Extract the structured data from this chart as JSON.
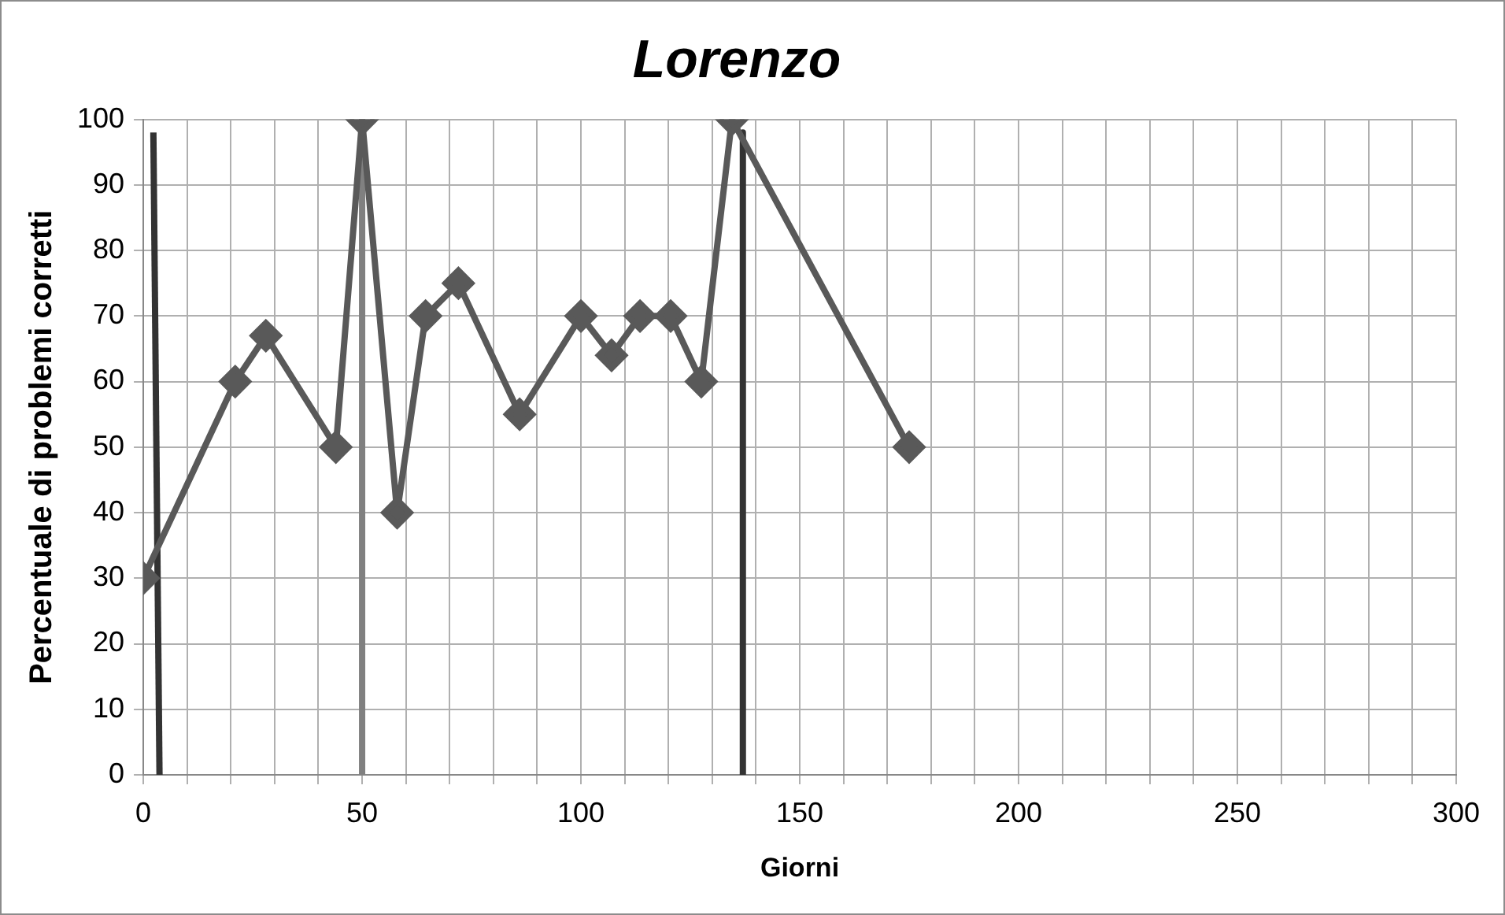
{
  "chart_data": {
    "type": "line",
    "title": "Lorenzo",
    "xlabel": "Giorni",
    "ylabel": "Percentuale di problemi corretti",
    "xlim": [
      0,
      300
    ],
    "xticks": [
      0,
      {
        "value": 10,
        "label": null
      },
      {
        "value": 20,
        "label": null
      },
      {
        "value": 30,
        "label": null
      },
      {
        "value": 40,
        "label": null
      },
      50,
      {
        "value": 60,
        "label": null
      },
      {
        "value": 70,
        "label": null
      },
      {
        "value": 80,
        "label": null
      },
      {
        "value": 90,
        "label": null
      },
      100,
      {
        "value": 110,
        "label": null
      },
      {
        "value": 120,
        "label": null
      },
      {
        "value": 130,
        "label": null
      },
      {
        "value": 140,
        "label": null
      },
      150,
      {
        "value": 160,
        "label": null
      },
      {
        "value": 170,
        "label": null
      },
      {
        "value": 180,
        "label": null
      },
      {
        "value": 190,
        "label": null
      },
      200,
      {
        "value": 210,
        "label": null
      },
      {
        "value": 220,
        "label": null
      },
      {
        "value": 230,
        "label": null
      },
      {
        "value": 240,
        "label": null
      },
      250,
      {
        "value": 260,
        "label": null
      },
      {
        "value": 270,
        "label": null
      },
      {
        "value": 280,
        "label": null
      },
      {
        "value": 290,
        "label": null
      },
      300
    ],
    "ylim": [
      0,
      100
    ],
    "yticks": [
      0,
      10,
      20,
      30,
      40,
      50,
      60,
      70,
      80,
      90,
      100
    ],
    "grid": true,
    "marker": "diamond",
    "series": [
      {
        "color": "#595959",
        "x": [
          0,
          21,
          28,
          44,
          50,
          58,
          64.5,
          72,
          86,
          100,
          107,
          113.5,
          120.5,
          127.5,
          134.5,
          175
        ],
        "values": [
          30,
          60,
          67,
          50,
          100,
          40,
          70,
          75,
          55,
          70,
          64,
          70,
          70,
          60,
          100,
          50
        ]
      },
      {
        "type": "line",
        "marker": "none",
        "color": "#333333",
        "x": [
          2.3,
          3.7
        ],
        "values": [
          98,
          0
        ]
      },
      {
        "type": "line",
        "marker": "none",
        "color": "#808080",
        "x": [
          50,
          50
        ],
        "values": [
          100,
          0
        ]
      },
      {
        "type": "line",
        "marker": "none",
        "color": "#333333",
        "x": [
          137,
          137
        ],
        "values": [
          98,
          0
        ]
      }
    ]
  }
}
